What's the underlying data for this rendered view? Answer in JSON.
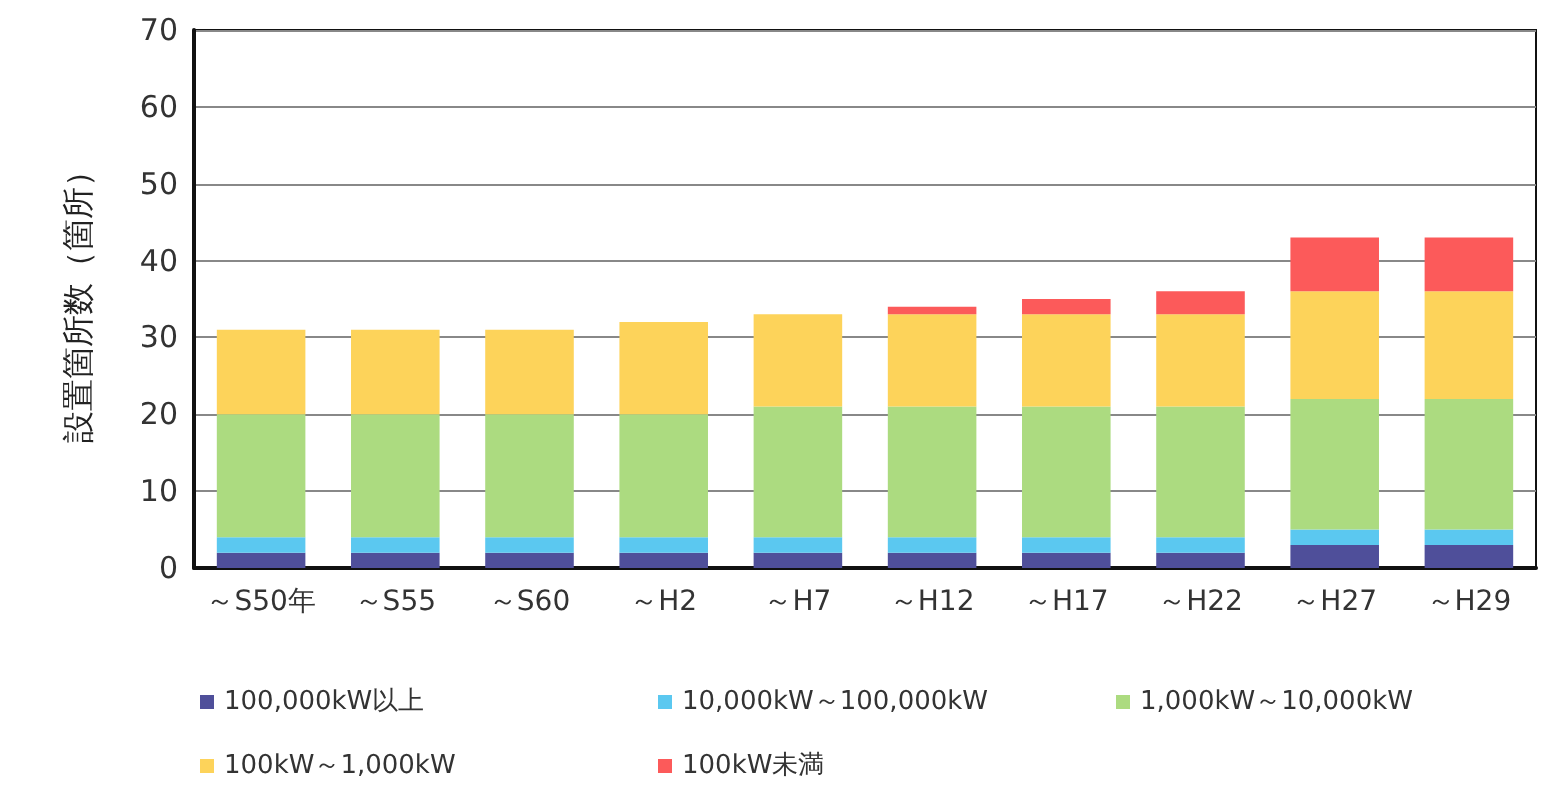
{
  "chart_data": {
    "type": "bar",
    "stacked": true,
    "ylabel": "設置箇所数（箇所）",
    "categories": [
      "～S50年",
      "～S55",
      "～S60",
      "～H2",
      "～H7",
      "～H12",
      "～H17",
      "～H22",
      "～H27",
      "～H29"
    ],
    "series": [
      {
        "name": "100,000kW以上",
        "color": "#4f4f9a",
        "values": [
          2,
          2,
          2,
          2,
          2,
          2,
          2,
          2,
          3,
          3
        ]
      },
      {
        "name": "10,000kW～100,000kW",
        "color": "#5bc8f0",
        "values": [
          2,
          2,
          2,
          2,
          2,
          2,
          2,
          2,
          2,
          2
        ]
      },
      {
        "name": "1,000kW～10,000kW",
        "color": "#acdb80",
        "values": [
          16,
          16,
          16,
          16,
          17,
          17,
          17,
          17,
          17,
          17
        ]
      },
      {
        "name": "100kW～1,000kW",
        "color": "#fdd35a",
        "values": [
          11,
          11,
          11,
          12,
          12,
          12,
          12,
          12,
          14,
          14
        ]
      },
      {
        "name": "100kW未満",
        "color": "#fc5a5a",
        "values": [
          0,
          0,
          0,
          0,
          0,
          1,
          2,
          3,
          7,
          7
        ]
      }
    ],
    "ylim": [
      0,
      70
    ],
    "yticks": [
      0,
      10,
      20,
      30,
      40,
      50,
      60,
      70
    ],
    "grid": "y",
    "legend": "bottom"
  }
}
